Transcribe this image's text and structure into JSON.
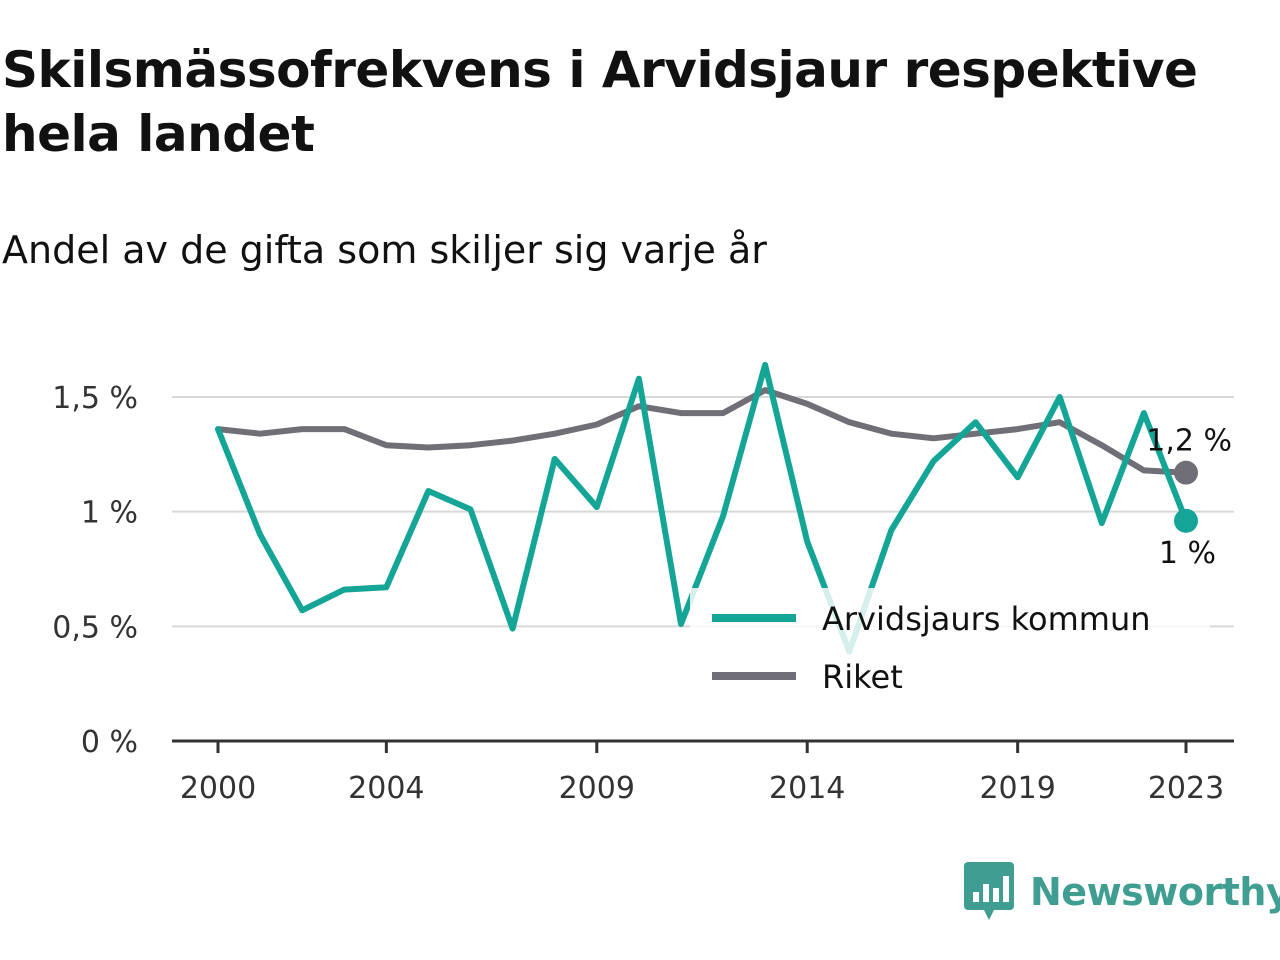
{
  "title": "Skilsmässofrekvens i Arvidsjaur respektive hela landet",
  "subtitle": "Andel av de gifta som skiljer sig varje år",
  "brand": {
    "name": "Newsworthy",
    "icon": "newsworthy-logo-icon"
  },
  "colors": {
    "arvidsjaur": "#14a597",
    "riket": "#706e76",
    "grid": "#d8d8d8",
    "axis": "#333333",
    "brand": "#3f9e91"
  },
  "chart_data": {
    "type": "line",
    "title": "Skilsmässofrekvens i Arvidsjaur respektive hela landet",
    "subtitle": "Andel av de gifta som skiljer sig varje år",
    "x_ticks": [
      2000,
      2004,
      2009,
      2014,
      2019,
      2023
    ],
    "x_tick_labels": [
      "2000",
      "2004",
      "2009",
      "2014",
      "2019",
      "2023"
    ],
    "y_ticks": [
      0,
      0.5,
      1,
      1.5
    ],
    "y_tick_labels": [
      "0 %",
      "0,5 %",
      "1 %",
      "1,5 %"
    ],
    "xlim": [
      2000,
      2023
    ],
    "ylim": [
      0,
      1.5
    ],
    "grid": "horizontal",
    "legend_position": "bottom-right",
    "x": [
      2000,
      2001,
      2002,
      2003,
      2004,
      2005,
      2006,
      2007,
      2008,
      2009,
      2010,
      2011,
      2012,
      2013,
      2014,
      2015,
      2016,
      2017,
      2018,
      2019,
      2020,
      2021,
      2022,
      2023
    ],
    "series": [
      {
        "name": "Arvidsjaurs kommun",
        "color": "#14a597",
        "values": [
          1.36,
          0.9,
          0.57,
          0.66,
          0.67,
          1.09,
          1.01,
          0.49,
          1.23,
          1.02,
          1.58,
          0.51,
          0.98,
          1.64,
          0.87,
          0.39,
          0.92,
          1.22,
          1.39,
          1.15,
          1.5,
          0.95,
          1.43,
          0.96
        ],
        "end_label": "1 %"
      },
      {
        "name": "Riket",
        "color": "#706e76",
        "values": [
          1.36,
          1.34,
          1.36,
          1.36,
          1.29,
          1.28,
          1.29,
          1.31,
          1.34,
          1.38,
          1.46,
          1.43,
          1.43,
          1.53,
          1.47,
          1.39,
          1.34,
          1.32,
          1.34,
          1.36,
          1.39,
          1.29,
          1.18,
          1.17
        ],
        "end_label": "1,2 %"
      }
    ]
  }
}
